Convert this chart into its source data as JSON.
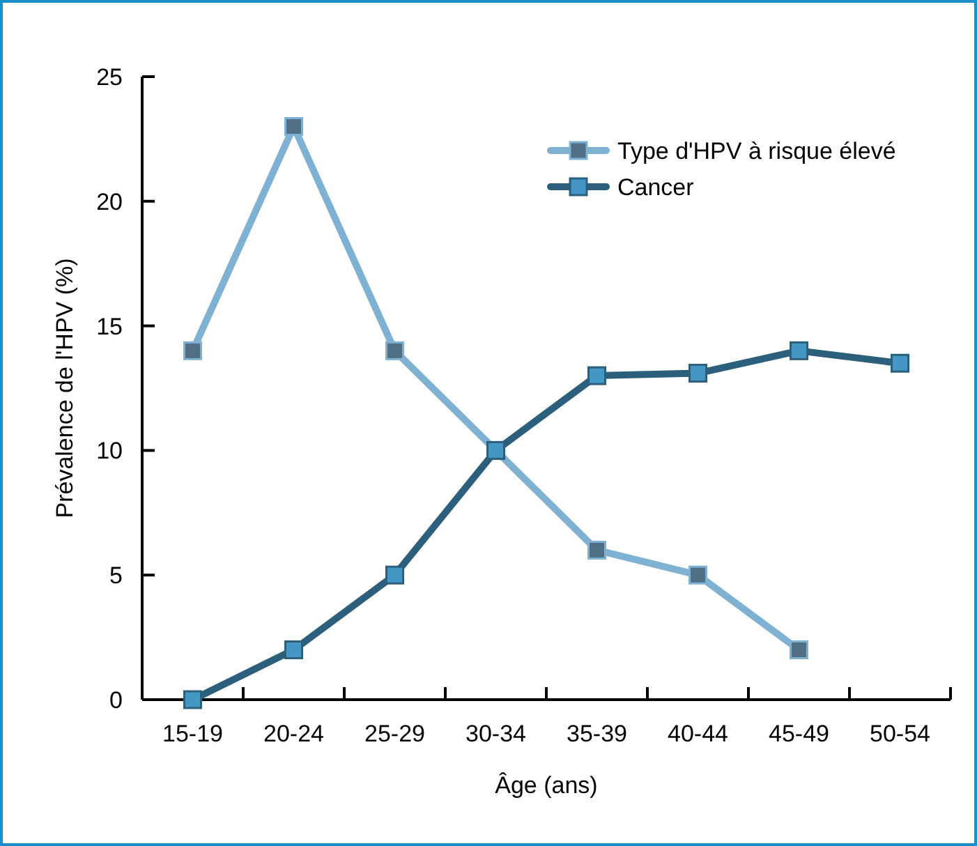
{
  "chart_data": {
    "type": "line",
    "xlabel": "Âge (ans)",
    "ylabel": "Prévalence de l'HPV (%)",
    "categories": [
      "15-19",
      "20-24",
      "25-29",
      "30-34",
      "35-39",
      "40-44",
      "45-49",
      "50-54"
    ],
    "series": [
      {
        "name": "Type d'HPV à risque élevé",
        "color": "#7fb1d3",
        "values": [
          14,
          23,
          14,
          10,
          6,
          5,
          2,
          null
        ]
      },
      {
        "name": "Cancer",
        "color": "#2b5f7c",
        "values": [
          0,
          2,
          5,
          10,
          13,
          13.1,
          14,
          13.5
        ]
      }
    ],
    "ylim": [
      0,
      25
    ],
    "yticks": [
      0,
      5,
      10,
      15,
      20,
      25
    ],
    "grid": false,
    "legend": "top right",
    "marker": "square",
    "line_style": "solid"
  }
}
